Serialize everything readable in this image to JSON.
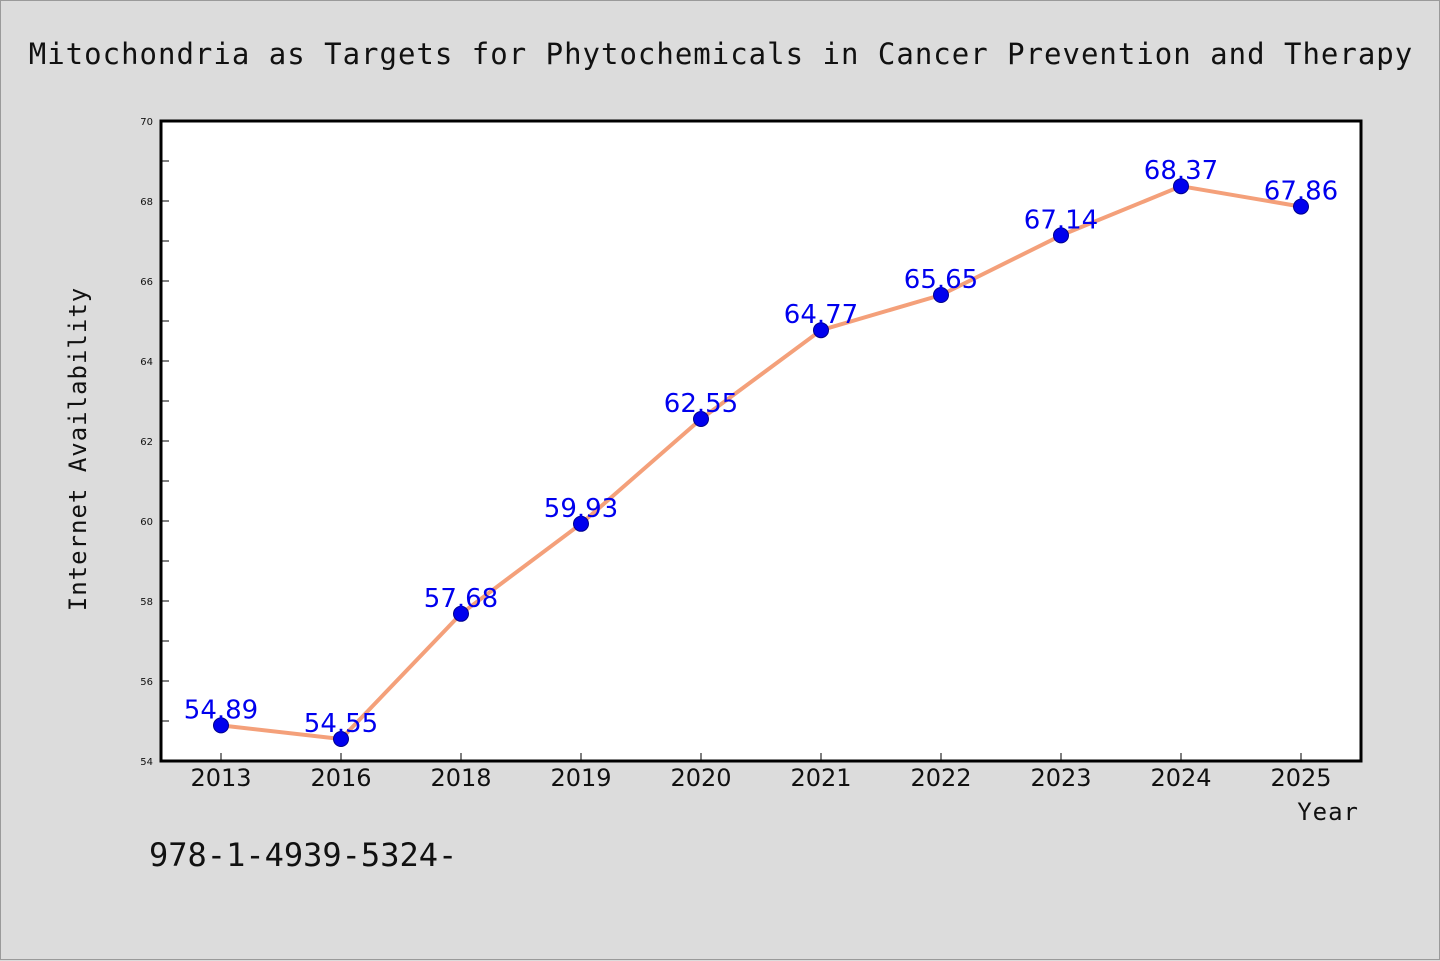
{
  "chart_data": {
    "type": "line",
    "title": "Mitochondria as Targets for Phytochemicals in Cancer Prevention and Therapy",
    "xlabel": "Year",
    "ylabel": "Internet Availability",
    "categories": [
      "2013",
      "2016",
      "2018",
      "2019",
      "2020",
      "2021",
      "2022",
      "2023",
      "2024",
      "2025"
    ],
    "series": [
      {
        "values": [
          54.89,
          54.55,
          57.68,
          59.93,
          62.55,
          64.77,
          65.65,
          67.14,
          68.37,
          67.86
        ],
        "data_labels": [
          "54.89",
          "54.55",
          "57.68",
          "59.93",
          "62.55",
          "64.77",
          "65.65",
          "67.14",
          "68.37",
          "67.86"
        ]
      }
    ],
    "ylim": [
      54,
      70
    ],
    "yticks": [
      "54",
      "56",
      "58",
      "60",
      "62",
      "64",
      "66",
      "68",
      "70"
    ],
    "grid": false,
    "legend": "none",
    "colors": {
      "line": "#f4a07a",
      "marker": "#0000ee",
      "label": "#0000ee",
      "background": "#dcdcdc",
      "plot_background": "#ffffff"
    }
  },
  "annotation": {
    "isbn_text": "978-1-4939-5324-"
  }
}
